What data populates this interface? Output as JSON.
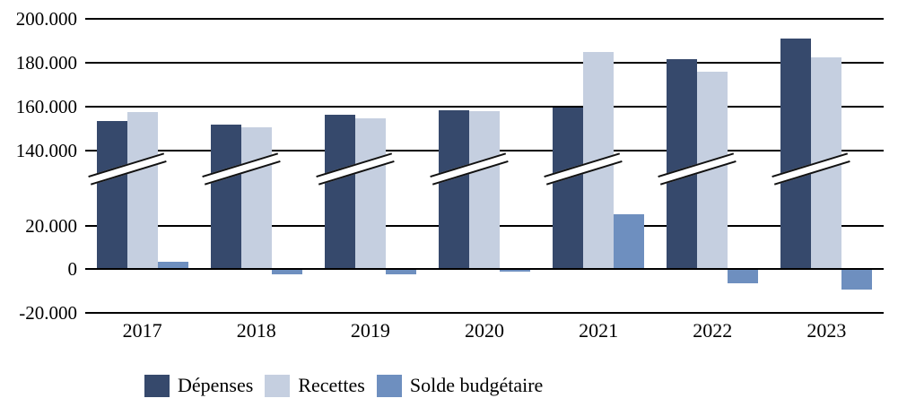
{
  "chart_data": {
    "type": "bar",
    "title": "",
    "xlabel": "",
    "ylabel": "",
    "categories": [
      "2017",
      "2018",
      "2019",
      "2020",
      "2021",
      "2022",
      "2023"
    ],
    "series": [
      {
        "name": "Dépenses",
        "color": "#36496C",
        "values": [
          153500,
          152000,
          156500,
          158500,
          159500,
          181500,
          191000
        ]
      },
      {
        "name": "Recettes",
        "color": "#C5CFE0",
        "values": [
          157500,
          150500,
          154500,
          158000,
          185000,
          176000,
          182500
        ]
      },
      {
        "name": "Solde budgétaire",
        "color": "#6E8FBF",
        "values": [
          3500,
          -2000,
          -2000,
          -1000,
          25000,
          -6000,
          -9000
        ]
      }
    ],
    "y_axis": {
      "upper_ticks": [
        {
          "label": "200.000",
          "value": 200000
        },
        {
          "label": "180.000",
          "value": 180000
        },
        {
          "label": "160.000",
          "value": 160000
        },
        {
          "label": "140.000",
          "value": 140000
        }
      ],
      "lower_ticks": [
        {
          "label": "20.000",
          "value": 20000
        },
        {
          "label": "0",
          "value": 0
        },
        {
          "label": "-20.000",
          "value": -20000
        }
      ],
      "axis_break": true,
      "break_between": [
        20000,
        140000
      ],
      "number_format": "thousands-dot"
    },
    "grid": true,
    "legend_position": "bottom",
    "colors": {
      "depenses": "#36496C",
      "recettes": "#C5CFE0",
      "solde": "#6E8FBF",
      "gridline": "#000000",
      "background": "#FFFFFF"
    }
  }
}
